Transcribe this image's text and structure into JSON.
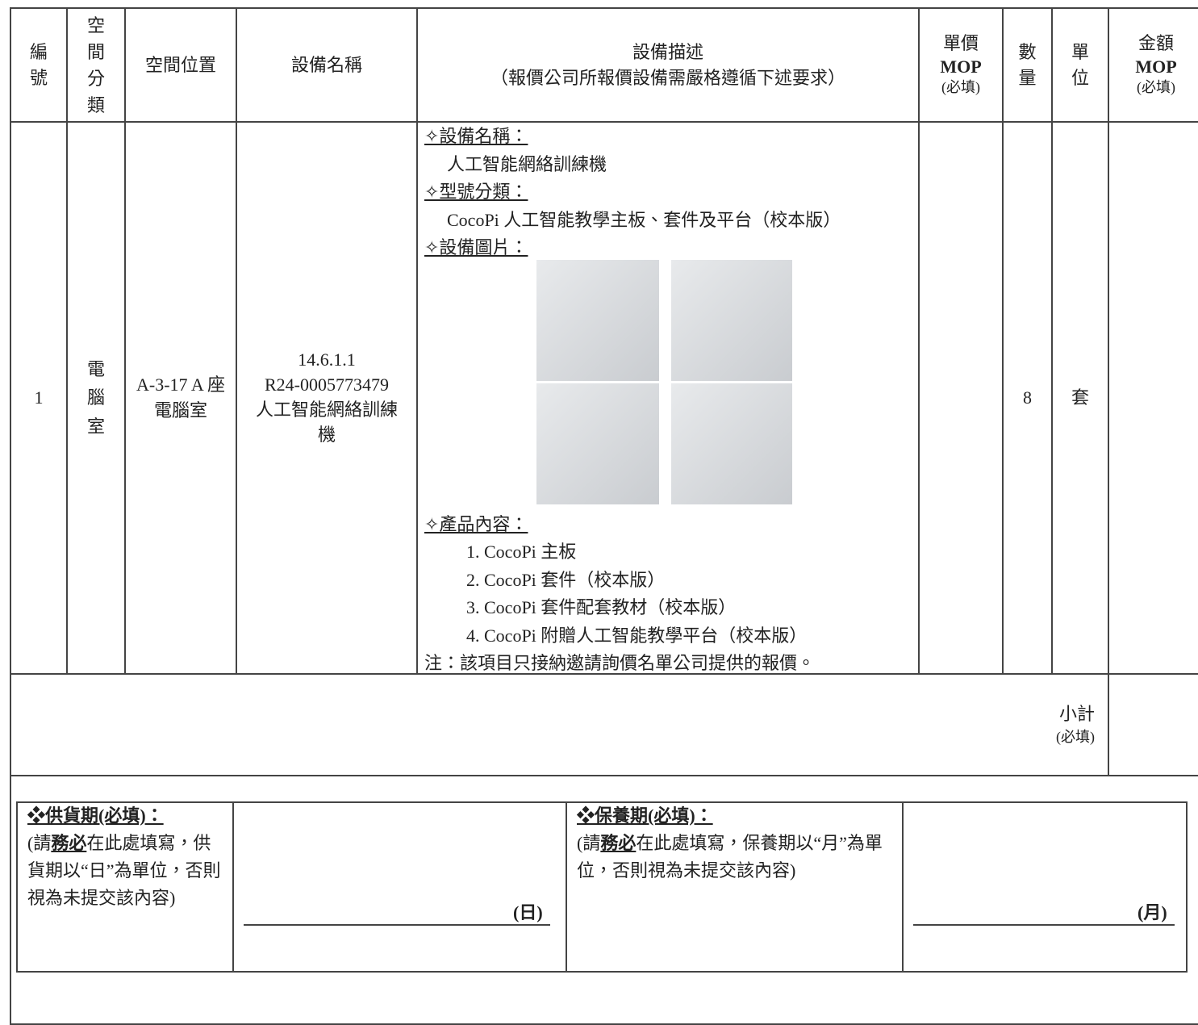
{
  "table": {
    "header": {
      "no": "編號",
      "space_type": "空間分類",
      "location": "空間位置",
      "equipment_name": "設備名稱",
      "description_title": "設備描述",
      "description_note": "（報價公司所報價設備需嚴格遵循下述要求）",
      "unit_price": [
        "單價",
        "MOP",
        "(必填)"
      ],
      "quantity": "數量",
      "unit": "單位",
      "amount": [
        "金額",
        "MOP",
        "(必填)"
      ]
    },
    "rows": [
      {
        "no": "1",
        "space_type": "電腦室",
        "location": "A-3-17 A 座電腦室",
        "equipment_name": [
          "14.6.1.1",
          "R24-0005773479",
          "人工智能網絡訓練機"
        ],
        "description": {
          "name_heading": "✧設備名稱：",
          "name": "人工智能網絡訓練機",
          "model_heading": "✧型號分類：",
          "model": "CocoPi 人工智能教學主板、套件及平台（校本版）",
          "image_heading": "✧設備圖片：",
          "contents_heading": "✧產品內容：",
          "contents": [
            "1. CocoPi 主板",
            "2. CocoPi 套件（校本版）",
            "3. CocoPi 套件配套教材（校本版）",
            "4. CocoPi 附贈人工智能教學平台（校本版）"
          ],
          "note": "注：該項目只接納邀請詢價名單公司提供的報價。"
        },
        "quantity": "8",
        "unit": "套"
      }
    ],
    "subtotal": [
      "小計",
      "(必填)"
    ]
  },
  "terms": {
    "supply": {
      "heading": "❖供貨期(必填)：",
      "prefix": "(請",
      "emphasis": "務必",
      "text": "在此處填寫，供貨期以“日”為單位，否則視為未提交該內容)",
      "unit": "(日)"
    },
    "warranty": {
      "heading": "❖保養期(必填)：",
      "prefix": "(請",
      "emphasis": "務必",
      "text": "在此處填寫，保養期以“月”為單位，否則視為未提交該內容)",
      "unit": "(月)"
    }
  }
}
